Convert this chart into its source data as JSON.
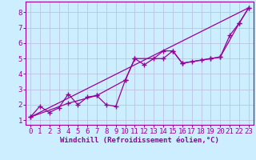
{
  "xlabel": "Windchill (Refroidissement éolien,°C)",
  "ylabel": "",
  "background_color": "#cceeff",
  "line_color": "#990099",
  "grid_color": "#bbbbdd",
  "xlim": [
    -0.5,
    23.5
  ],
  "ylim": [
    0.7,
    8.7
  ],
  "xticks": [
    0,
    1,
    2,
    3,
    4,
    5,
    6,
    7,
    8,
    9,
    10,
    11,
    12,
    13,
    14,
    15,
    16,
    17,
    18,
    19,
    20,
    21,
    22,
    23
  ],
  "yticks": [
    1,
    2,
    3,
    4,
    5,
    6,
    7,
    8
  ],
  "series1_x": [
    0,
    1,
    2,
    3,
    4,
    5,
    6,
    7,
    8,
    9,
    10,
    11,
    12,
    13,
    14,
    15,
    16,
    17,
    18,
    19,
    20,
    21,
    22,
    23
  ],
  "series1_y": [
    1.2,
    1.9,
    1.5,
    1.8,
    2.7,
    2.0,
    2.5,
    2.6,
    2.0,
    1.9,
    3.6,
    5.0,
    4.6,
    5.0,
    5.5,
    5.5,
    4.7,
    4.8,
    4.9,
    5.0,
    5.1,
    6.5,
    7.3,
    8.3
  ],
  "series2_x": [
    0,
    4,
    7,
    10,
    11,
    14,
    15,
    16,
    19,
    20,
    22,
    23
  ],
  "series2_y": [
    1.2,
    2.1,
    2.6,
    3.6,
    5.0,
    5.0,
    5.5,
    4.7,
    5.0,
    5.1,
    7.3,
    8.3
  ],
  "series3_x": [
    0,
    23
  ],
  "series3_y": [
    1.2,
    8.3
  ],
  "tick_fontsize": 6.5
}
